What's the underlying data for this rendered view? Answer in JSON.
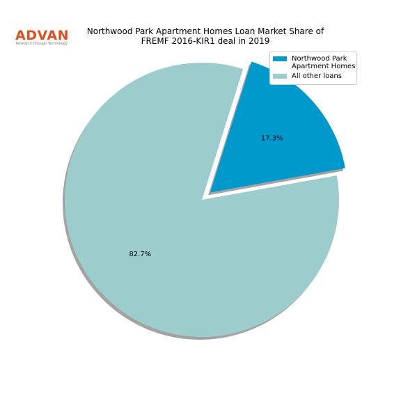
{
  "logo": {
    "brand": "ADVAN",
    "tagline": "Research through Technology"
  },
  "chart_data": {
    "type": "pie",
    "title": "Northwood Park Apartment Homes Loan Market Share of\nFREMF 2016-KIR1 deal in 2019",
    "categories": [
      "Northwood Park\nApartment Homes",
      "All other loans"
    ],
    "values": [
      17.3,
      82.7
    ],
    "value_labels": [
      "17.3%",
      "82.7%"
    ],
    "colors": [
      "#0099cc",
      "#9dcccd"
    ],
    "explode": [
      true,
      false
    ],
    "shadow": true,
    "legend": "upper right"
  }
}
